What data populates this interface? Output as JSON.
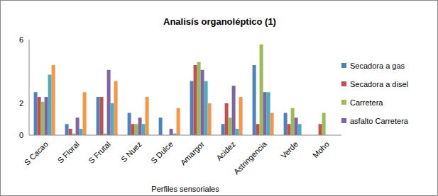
{
  "chart_data": {
    "type": "bar",
    "title": "Analisís organoléptico (1)",
    "x_label": "Perfiles sensoriales",
    "categories": [
      "S Cacao",
      "S Floral",
      "S Frutal",
      "S Nuez",
      "S Dulce",
      "Amargor",
      "Acidez",
      "Astringencia",
      "Verde",
      "Moho"
    ],
    "series": [
      {
        "name": "Secadora a gas",
        "color": "#4f81bd",
        "values": [
          2.7,
          0.7,
          2.4,
          1.4,
          1.1,
          3.4,
          0.7,
          4.4,
          1.4,
          0
        ]
      },
      {
        "name": "Secadora a disel",
        "color": "#c0504d",
        "values": [
          2.4,
          0.4,
          2.4,
          0.7,
          0,
          4.4,
          2.0,
          0.7,
          0.7,
          0.7
        ]
      },
      {
        "name": "Carretera",
        "color": "#9bbb59",
        "values": [
          2.1,
          0.1,
          0.1,
          0.7,
          0,
          4.6,
          1.1,
          5.7,
          1.7,
          1.4
        ]
      },
      {
        "name": "asfalto Carretera",
        "color": "#8064a2",
        "values": [
          2.4,
          1.1,
          4.1,
          1.1,
          0.4,
          4.1,
          3.1,
          2.7,
          1.1,
          0
        ]
      },
      {
        "name": null,
        "color": "#4bacc6",
        "values": [
          3.8,
          0.4,
          2.0,
          0.7,
          0.1,
          3.4,
          0.4,
          2.7,
          0.7,
          0
        ]
      },
      {
        "name": null,
        "color": "#f79646",
        "values": [
          4.4,
          2.7,
          3.4,
          2.4,
          1.7,
          2.0,
          2.4,
          1.4,
          0,
          0
        ]
      }
    ],
    "ylim": [
      0,
      6
    ],
    "yticks": [
      0,
      2,
      6
    ],
    "grid": false,
    "legend": "right"
  }
}
